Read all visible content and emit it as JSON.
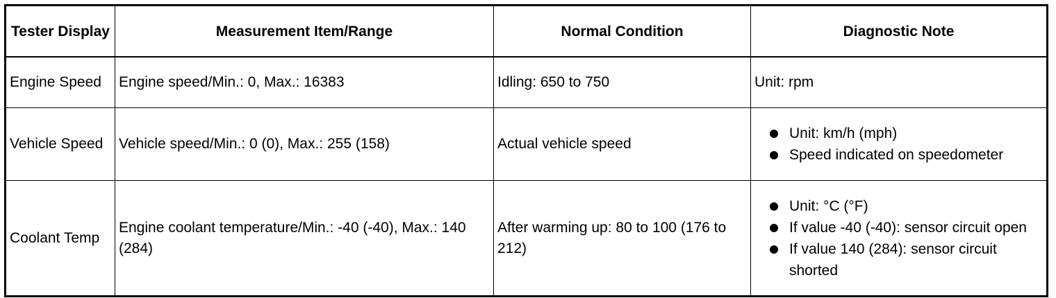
{
  "header": {
    "col1": "Tester Display",
    "col2": "Measurement Item/Range",
    "col3": "Normal Condition",
    "col4": "Diagnostic Note"
  },
  "rows": [
    {
      "display": "Engine Speed",
      "measurement": "Engine speed/Min.: 0, Max.: 16383",
      "normal": "Idling: 650 to 750",
      "note": "Unit: rpm"
    },
    {
      "display": "Vehicle Speed",
      "measurement": "Vehicle speed/Min.: 0 (0), Max.: 255 (158)",
      "normal": "Actual vehicle speed",
      "notes": [
        "Unit: km/h (mph)",
        "Speed indicated on speedometer"
      ]
    },
    {
      "display": "Coolant Temp",
      "measurement": "Engine coolant temperature/Min.: -40 (-40), Max.: 140 (284)",
      "normal": "After warming up: 80 to 100 (176 to 212)",
      "notes": [
        "Unit: °C (°F)",
        "If value -40 (-40): sensor circuit open",
        "If value 140 (284): sensor circuit shorted"
      ]
    }
  ]
}
